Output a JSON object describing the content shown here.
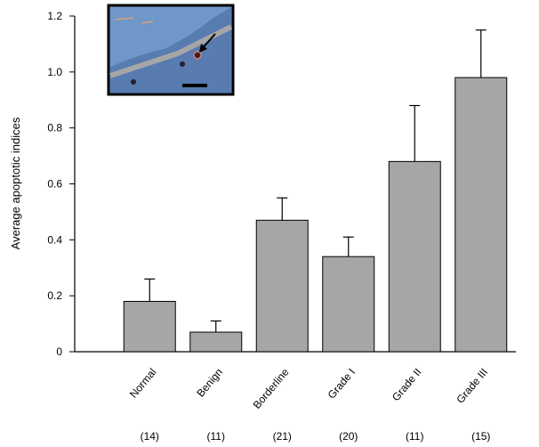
{
  "chart_data": {
    "type": "bar",
    "y_label": "Average apoptotic indices",
    "categories": [
      "Normal",
      "Benign",
      "Borderline",
      "Grade I",
      "Grade II",
      "Grade III"
    ],
    "n_labels": [
      "(14)",
      "(11)",
      "(21)",
      "(20)",
      "(11)",
      "(15)"
    ],
    "values": [
      0.18,
      0.07,
      0.47,
      0.34,
      0.68,
      0.98
    ],
    "errors": [
      0.08,
      0.04,
      0.08,
      0.07,
      0.2,
      0.17
    ],
    "color": "#a6a6a6",
    "ylim": [
      0,
      1.2
    ],
    "yticks": [
      0,
      0.2,
      0.4,
      0.6,
      0.8,
      {
        "value": 1,
        "label": "1.0"
      },
      1.2
    ]
  }
}
